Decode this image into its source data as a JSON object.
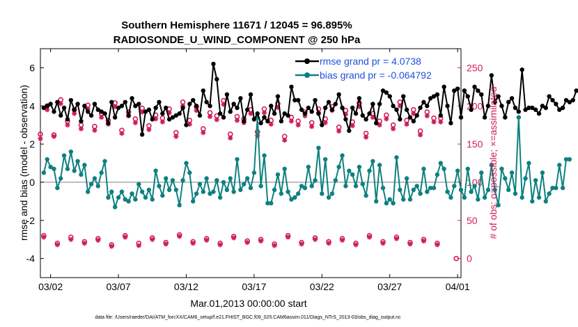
{
  "chart_data": {
    "type": "line",
    "title_line1": "Southern Hemisphere 11671 / 12045 = 96.895%",
    "title_line2": "RADIOSONDE_U_WIND_COMPONENT @ 250 hPa",
    "xlabel": "Mar.01,2013 00:00:00 start",
    "ylabel_left": "rmse and bias (model - observation)",
    "ylabel_right": "# of obs: o=possible; ×=assimilated",
    "footnote": "data file: /Users/raeder/DAI/ATM_forcXX/CAM6_setup/f.e21.FHIST_BGC.f09_025.CAM6assim.011/Diags_NTrS_2013-03/obs_diag_output.nc",
    "x_tick_labels": [
      "03/02",
      "03/07",
      "03/12",
      "03/17",
      "03/22",
      "03/27",
      "04/01"
    ],
    "x_tick_days": [
      1,
      6,
      11,
      16,
      21,
      26,
      31
    ],
    "xlim": [
      0.25,
      31.25
    ],
    "ylim_left": [
      -5,
      7
    ],
    "y_ticks_left": [
      -4,
      -2,
      0,
      2,
      4,
      6
    ],
    "ylim_right": [
      -25,
      275
    ],
    "y_ticks_right": [
      0,
      50,
      100,
      150,
      200,
      250
    ],
    "legend": [
      {
        "label": "rmse grand pr = 4.0738",
        "color": "#000000"
      },
      {
        "label": "bias grand pr = -0.064792",
        "color": "#0e8080"
      }
    ],
    "x_step_days": 0.25,
    "x_start_day": 0.5,
    "series": [
      {
        "name": "rmse",
        "axis": "left",
        "color": "#000000",
        "values": [
          3.9,
          4.0,
          4.1,
          3.7,
          4.2,
          3.5,
          3.9,
          3.3,
          4.3,
          3.8,
          4.1,
          3.2,
          4.0,
          3.7,
          3.5,
          4.1,
          3.8,
          3.7,
          3.6,
          3.1,
          4.2,
          3.4,
          3.9,
          4.0,
          4.2,
          3.5,
          4.4,
          4.0,
          4.1,
          2.5,
          3.7,
          3.8,
          3.3,
          3.9,
          4.2,
          3.6,
          3.9,
          3.3,
          3.4,
          3.5,
          3.6,
          3.9,
          3.0,
          4.1,
          4.3,
          4.0,
          3.5,
          4.8,
          4.2,
          4.0,
          6.2,
          5.4,
          3.6,
          3.4,
          4.6,
          3.7,
          4.1,
          3.9,
          4.4,
          3.2,
          3.8,
          4.6,
          3.3,
          3.6,
          3.1,
          3.4,
          3.2,
          4.0,
          3.6,
          4.5,
          3.2,
          3.6,
          3.5,
          5.0,
          4.3,
          4.3,
          3.8,
          3.6,
          3.9,
          3.7,
          4.3,
          3.6,
          3.0,
          3.9,
          4.2,
          3.8,
          4.1,
          4.6,
          3.9,
          3.3,
          2.7,
          3.9,
          3.6,
          4.4,
          3.5,
          3.3,
          3.6,
          4.1,
          3.1,
          4.1,
          4.8,
          4.7,
          4.5,
          4.0,
          3.8,
          3.3,
          4.5,
          3.8,
          3.4,
          3.2,
          3.5,
          3.9,
          4.2,
          4.0,
          4.4,
          4.5,
          4.6,
          3.5,
          5.0,
          4.0,
          3.1,
          4.8,
          4.9,
          3.4,
          4.8,
          4.5,
          3.8,
          5.0,
          4.8,
          4.6,
          3.4,
          4.0,
          5.6,
          4.2,
          4.5,
          4.0,
          3.4,
          4.2,
          4.4,
          3.9,
          3.7,
          5.9,
          3.8,
          3.9,
          3.9,
          3.8,
          3.6,
          4.0,
          3.9,
          4.5,
          4.3,
          4.1,
          3.8,
          3.9,
          4.3,
          4.2,
          4.3,
          4.8
        ]
      },
      {
        "name": "bias",
        "axis": "left",
        "color": "#0e8080",
        "values": [
          0.5,
          1.2,
          0.8,
          0.7,
          -0.3,
          0.2,
          1.4,
          0.7,
          1.6,
          0.6,
          1.1,
          0.4,
          0.9,
          -0.5,
          -0.1,
          0.2,
          -0.2,
          0.5,
          1.1,
          -0.8,
          -0.5,
          -1.3,
          -0.8,
          -0.5,
          -0.9,
          -1.0,
          -0.6,
          -0.9,
          -0.1,
          -0.5,
          -0.8,
          -0.4,
          -0.9,
          0.6,
          -0.2,
          -0.7,
          0.2,
          -0.4,
          0.1,
          -0.4,
          -1.2,
          0.1,
          1.0,
          0.5,
          -1.0,
          -0.6,
          -0.1,
          -0.5,
          0.2,
          -0.6,
          -0.5,
          0.1,
          -0.8,
          0.0,
          -0.4,
          0.2,
          -0.5,
          1.2,
          -0.4,
          -0.1,
          0.2,
          -0.3,
          0.5,
          3.4,
          -0.2,
          1.4,
          -1.1,
          -1.1,
          -0.4,
          0.4,
          -0.6,
          0.7,
          -0.5,
          -0.9,
          -0.8,
          -0.6,
          -0.2,
          -0.3,
          0.8,
          -0.2,
          0.1,
          1.8,
          -0.6,
          1.2,
          -0.8,
          -0.6,
          0.1,
          0.8,
          1.4,
          -0.2,
          0.6,
          0.4,
          -0.2,
          0.8,
          -0.1,
          -0.7,
          0.6,
          1.1,
          -1.0,
          0.9,
          -0.3,
          -1.1,
          -0.9,
          -1.1,
          1.3,
          -0.4,
          -0.9,
          0.2,
          -0.9,
          -0.4,
          -0.2,
          -0.6,
          0.7,
          -0.5,
          -0.3,
          -0.3,
          0.4,
          1.0,
          0.7,
          -0.5,
          -0.8,
          -0.2,
          0.6,
          -0.4,
          -0.8,
          0.7,
          -0.5,
          -0.2,
          -0.9,
          0.5,
          -0.8,
          -0.4,
          0.9,
          -0.4,
          -1.2,
          0.7,
          0.2,
          -0.4,
          0.5,
          -0.6,
          3.4,
          -0.8,
          0.2,
          1.0,
          -1.0,
          0.1,
          -0.8,
          0.5,
          -1.0,
          -0.6,
          -0.3,
          -0.3,
          0.9,
          -0.3,
          1.2,
          1.2
        ]
      },
      {
        "name": "obs possible (day 00Z)",
        "axis": "right",
        "color": "#d01c5b",
        "marker": "circle",
        "values": [
          163,
          162,
          180,
          175,
          173,
          181,
          168,
          183,
          174,
          184,
          165,
          181,
          170,
          187,
          163,
          183,
          166,
          181,
          160,
          180,
          178,
          183,
          172,
          179,
          164,
          180,
          175,
          181,
          167,
          184
        ]
      },
      {
        "name": "obs assimilated (day 00Z)",
        "axis": "right",
        "color": "#d01c5b",
        "marker": "star",
        "values": [
          157,
          160,
          175,
          170,
          168,
          176,
          164,
          178,
          169,
          179,
          160,
          176,
          165,
          182,
          158,
          178,
          161,
          176,
          155,
          175,
          173,
          178,
          167,
          174,
          159,
          175,
          170,
          176,
          162,
          179
        ]
      },
      {
        "name": "obs possible (day 12Z)",
        "axis": "right",
        "color": "#d01c5b",
        "marker": "circle",
        "values": [
          200,
          208,
          195,
          201,
          190,
          204,
          192,
          197,
          188,
          196,
          205,
          199,
          191,
          207,
          186,
          195,
          196,
          203,
          185,
          192,
          196,
          199,
          194,
          204,
          190,
          188,
          205,
          195,
          192,
          184
        ]
      },
      {
        "name": "obs assimilated (day 12Z)",
        "axis": "right",
        "color": "#d01c5b",
        "marker": "star",
        "values": [
          195,
          203,
          190,
          196,
          185,
          199,
          187,
          192,
          183,
          191,
          200,
          194,
          186,
          202,
          181,
          190,
          191,
          198,
          180,
          187,
          191,
          194,
          189,
          199,
          185,
          183,
          200,
          190,
          187,
          179
        ]
      },
      {
        "name": "obs possible (06Z/18Z)",
        "axis": "right",
        "color": "#d01c5b",
        "marker": "circle",
        "values": [
          30,
          20,
          28,
          22,
          26,
          18,
          30,
          20,
          27,
          21,
          31,
          22,
          26,
          20,
          29,
          23,
          25,
          19,
          30,
          21,
          27,
          22,
          26,
          20,
          30,
          22,
          28,
          21,
          25,
          20
        ]
      },
      {
        "name": "obs assimilated (06Z/18Z)",
        "axis": "right",
        "color": "#d01c5b",
        "marker": "star",
        "values": [
          28,
          18,
          25,
          20,
          24,
          16,
          28,
          17,
          25,
          19,
          29,
          20,
          24,
          18,
          27,
          21,
          23,
          17,
          28,
          19,
          25,
          20,
          24,
          18,
          28,
          20,
          26,
          19,
          23,
          18
        ]
      }
    ]
  }
}
